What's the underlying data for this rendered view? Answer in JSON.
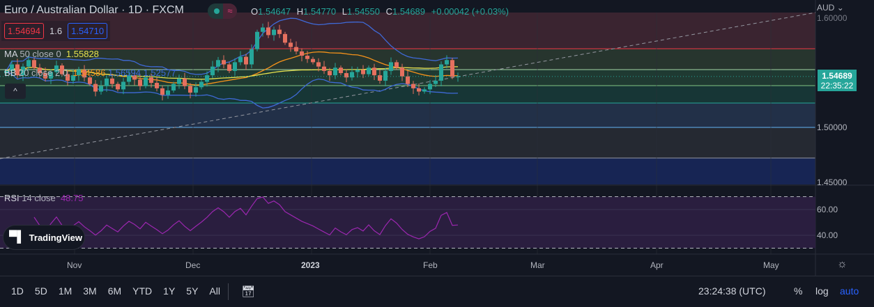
{
  "header": {
    "title": "Euro / Australian Dollar · 1D · FXCM",
    "ohlc": {
      "o_label": "O",
      "o": "1.54647",
      "h_label": "H",
      "h": "1.54770",
      "l_label": "L",
      "l": "1.54550",
      "c_label": "C",
      "c": "1.54689",
      "change": "+0.00042 (+0.03%)"
    }
  },
  "legend": {
    "sell": "1.54694",
    "spread": "1.6",
    "buy": "1.54710"
  },
  "indicators": {
    "ma": {
      "name": "MA",
      "params": "50 close 0",
      "value": "1.55828"
    },
    "bb": {
      "name": "BB",
      "params": "20 close 2 0",
      "basis": "1.54586",
      "upper": "1.56594",
      "lower": "1.52577"
    },
    "rsi": {
      "name": "RSI",
      "params": "14 close",
      "value": "48.75"
    }
  },
  "price_axis": {
    "currency": "AUD",
    "ticks": [
      "1.60000",
      "1.50000",
      "1.45000"
    ],
    "last_price": "1.54689",
    "countdown": "22:35:22"
  },
  "rsi_axis": {
    "ticks": [
      "60.00",
      "40.00"
    ]
  },
  "time_axis": {
    "labels": [
      "Nov",
      "Dec",
      "2023",
      "Feb",
      "Mar",
      "Apr",
      "May"
    ]
  },
  "branding": "TradingView",
  "toolbar": {
    "periods": [
      "1D",
      "5D",
      "1M",
      "3M",
      "6M",
      "YTD",
      "1Y",
      "5Y",
      "All"
    ],
    "clock": "23:24:38 (UTC)",
    "percent": "%",
    "log": "log",
    "auto": "auto"
  },
  "colors": {
    "up": "#26a69a",
    "down": "#e5705f",
    "ma": "#e6e14e",
    "bb_basis": "#f7931a",
    "bb_band": "#3f6ad8",
    "rsi": "#9c27b0",
    "accent": "#2962ff"
  },
  "chart_data": {
    "type": "candlestick",
    "symbol": "EURAUD",
    "interval": "1D",
    "closes": [
      1.552,
      1.558,
      1.548,
      1.556,
      1.562,
      1.555,
      1.55,
      1.545,
      1.551,
      1.557,
      1.549,
      1.543,
      1.548,
      1.553,
      1.546,
      1.54,
      1.533,
      1.538,
      1.545,
      1.54,
      1.535,
      1.542,
      1.548,
      1.544,
      1.538,
      1.546,
      1.541,
      1.536,
      1.53,
      1.534,
      1.54,
      1.545,
      1.538,
      1.532,
      1.537,
      1.542,
      1.548,
      1.556,
      1.562,
      1.558,
      1.552,
      1.56,
      1.565,
      1.558,
      1.572,
      1.588,
      1.592,
      1.585,
      1.59,
      1.586,
      1.578,
      1.574,
      1.57,
      1.566,
      1.563,
      1.56,
      1.556,
      1.552,
      1.548,
      1.555,
      1.55,
      1.546,
      1.551,
      1.553,
      1.549,
      1.555,
      1.548,
      1.543,
      1.552,
      1.56,
      1.555,
      1.547,
      1.54,
      1.536,
      1.533,
      1.535,
      1.54,
      1.543,
      1.558,
      1.562,
      1.54647,
      1.54689
    ],
    "price_range": [
      1.45,
      1.6
    ],
    "rsi_range": [
      30,
      70
    ]
  }
}
